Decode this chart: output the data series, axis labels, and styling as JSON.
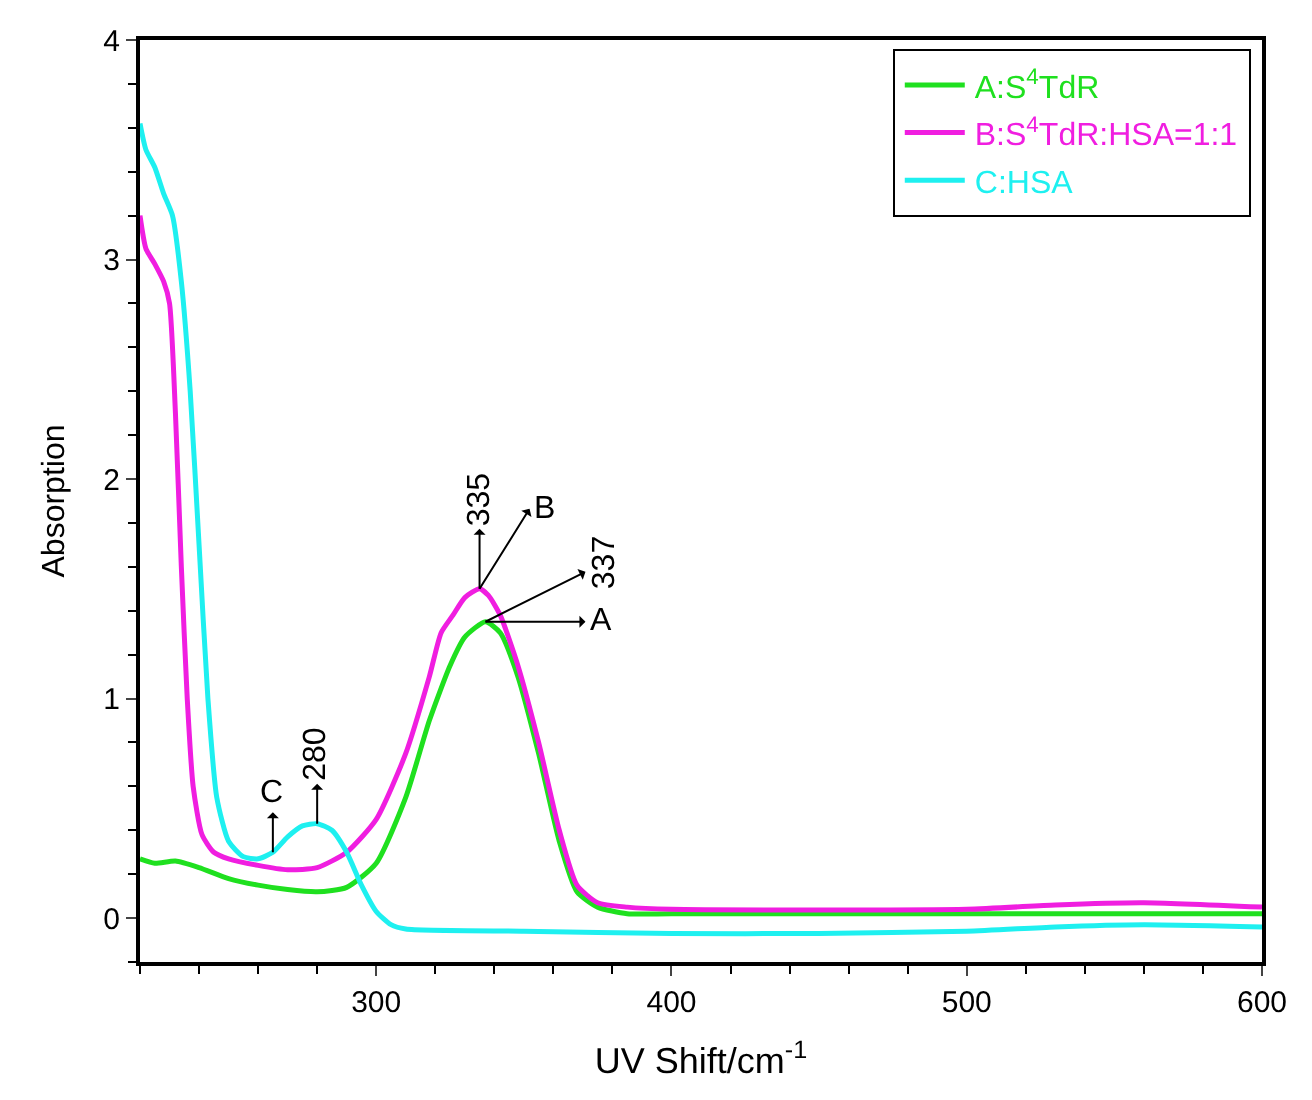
{
  "chart_data": {
    "type": "line",
    "xlabel": "UV Shift/cm$^{-1}$",
    "ylabel": "Absorption",
    "xlim": [
      220,
      600
    ],
    "xticks": [
      300,
      400,
      500,
      600
    ],
    "ylim": [
      -0.2,
      4
    ],
    "yticks": [
      0,
      1,
      2,
      3,
      4
    ],
    "legend": "top right",
    "marker": "none",
    "line_style": "solid",
    "series": [
      {
        "name": "A:S$^{4}$TdR",
        "color": "#1fe01f",
        "x": [
          220,
          225,
          232,
          240,
          250,
          260,
          270,
          280,
          290,
          300,
          310,
          318,
          325,
          330,
          337,
          342,
          348,
          355,
          362,
          368,
          375,
          385,
          400,
          500,
          600
        ],
        "values": [
          0.27,
          0.25,
          0.26,
          0.23,
          0.18,
          0.15,
          0.13,
          0.12,
          0.14,
          0.25,
          0.55,
          0.9,
          1.15,
          1.28,
          1.35,
          1.3,
          1.1,
          0.75,
          0.35,
          0.12,
          0.05,
          0.02,
          0.02,
          0.02,
          0.02
        ]
      },
      {
        "name": "B:S$^{4}$TdR:HSA=1:1",
        "color": "#f01ee0",
        "x": [
          220,
          222,
          225,
          228,
          230,
          232,
          234,
          236,
          238,
          241,
          245,
          250,
          260,
          270,
          280,
          290,
          300,
          310,
          318,
          322,
          326,
          330,
          335,
          338,
          342,
          348,
          355,
          362,
          368,
          375,
          385,
          400,
          500,
          530,
          560,
          600
        ],
        "values": [
          3.2,
          3.05,
          2.98,
          2.9,
          2.8,
          2.3,
          1.6,
          1.0,
          0.6,
          0.38,
          0.3,
          0.27,
          0.24,
          0.22,
          0.23,
          0.3,
          0.45,
          0.75,
          1.1,
          1.3,
          1.38,
          1.46,
          1.5,
          1.47,
          1.38,
          1.15,
          0.8,
          0.4,
          0.15,
          0.07,
          0.05,
          0.04,
          0.04,
          0.06,
          0.07,
          0.05
        ]
      },
      {
        "name": "C:HSA",
        "color": "#1ef0f0",
        "x": [
          220,
          222,
          225,
          228,
          231,
          234,
          237,
          240,
          243,
          246,
          250,
          255,
          260,
          265,
          270,
          275,
          280,
          285,
          290,
          295,
          300,
          305,
          310,
          350,
          400,
          450,
          500,
          530,
          560,
          600
        ],
        "values": [
          3.62,
          3.5,
          3.42,
          3.3,
          3.2,
          2.9,
          2.4,
          1.7,
          1.0,
          0.55,
          0.35,
          0.28,
          0.27,
          0.3,
          0.37,
          0.42,
          0.43,
          0.4,
          0.3,
          0.15,
          0.03,
          -0.03,
          -0.05,
          -0.06,
          -0.07,
          -0.07,
          -0.06,
          -0.04,
          -0.03,
          -0.04
        ]
      }
    ],
    "annotations": [
      {
        "text": "335",
        "x": 335,
        "y": 1.5
      },
      {
        "text": "B",
        "x": 335,
        "y": 1.5
      },
      {
        "text": "337",
        "x": 337,
        "y": 1.35
      },
      {
        "text": "A",
        "x": 337,
        "y": 1.35
      },
      {
        "text": "280",
        "x": 280,
        "y": 0.43
      },
      {
        "text": "C",
        "x": 265,
        "y": 0.3
      }
    ]
  }
}
